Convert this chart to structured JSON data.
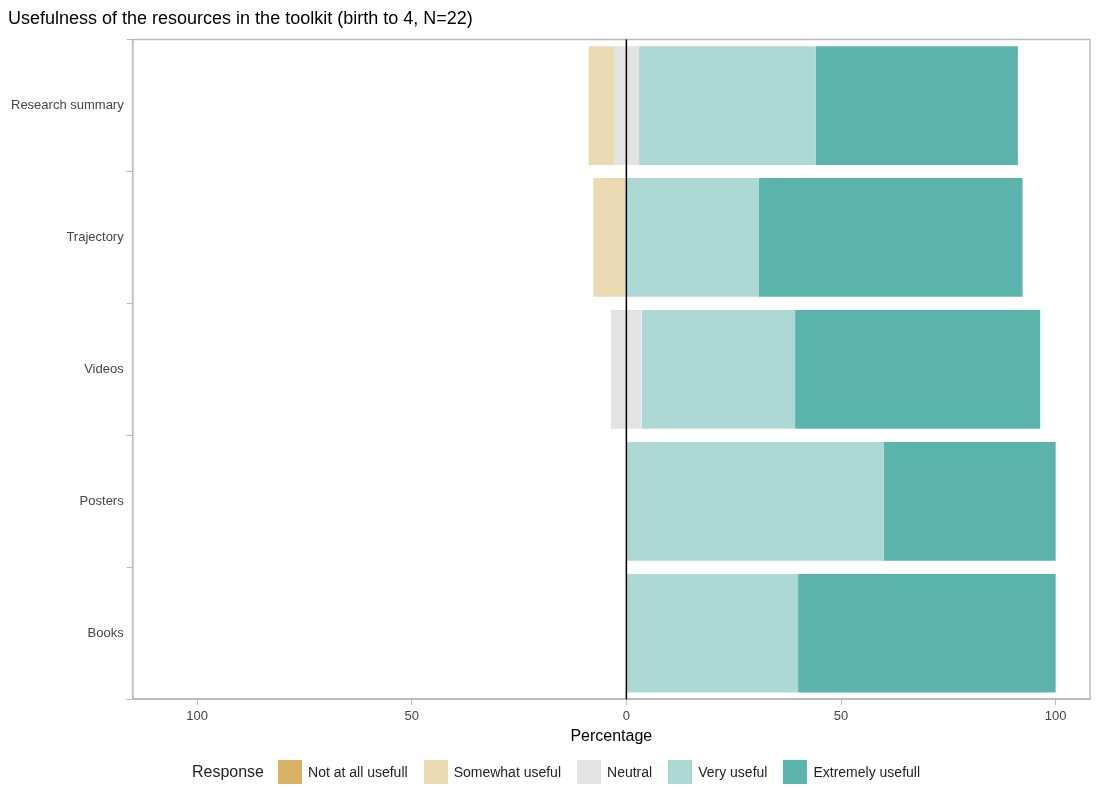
{
  "chart_data": {
    "type": "bar",
    "orientation": "horizontal",
    "title": "Usefulness of the resources in the toolkit (birth to 4, N=22)",
    "xlabel": "Percentage",
    "legend_title": "Response",
    "legend": "bottom",
    "categories": [
      "Research summary",
      "Trajectory",
      "Videos",
      "Posters",
      "Books"
    ],
    "series": [
      {
        "name": "Not at all usefull",
        "color": "#d8b365",
        "values": [
          null,
          null,
          null,
          null,
          null
        ],
        "base": [
          null,
          null,
          null,
          null,
          null
        ]
      },
      {
        "name": "Somewhat useful",
        "color": "#ebd9b2",
        "values": [
          5.9,
          7.7,
          null,
          null,
          null
        ],
        "base": [
          -8.8,
          -7.7,
          null,
          null,
          null
        ]
      },
      {
        "name": "Neutral",
        "color": "#e3e3e3",
        "values": [
          5.9,
          null,
          7.1,
          null,
          null
        ],
        "base": [
          -2.9,
          null,
          -3.6,
          null,
          null
        ]
      },
      {
        "name": "Very useful",
        "color": "#add9d5",
        "values": [
          41.2,
          30.8,
          35.7,
          60,
          40
        ],
        "base": [
          2.9,
          0,
          3.6,
          0,
          0
        ]
      },
      {
        "name": "Extremely usefull",
        "color": "#5ab4ac",
        "values": [
          47.1,
          61.5,
          57.1,
          40,
          60
        ],
        "base": [
          44.1,
          30.8,
          39.3,
          60,
          40
        ]
      }
    ],
    "xlim": [
      -115,
      108
    ],
    "xticks": [
      {
        "value": -100,
        "label": "100"
      },
      {
        "value": -50,
        "label": "50"
      },
      0,
      50,
      100
    ],
    "ref_lines": [
      {
        "axis": "x",
        "value": 0,
        "color": "#000000"
      }
    ]
  }
}
